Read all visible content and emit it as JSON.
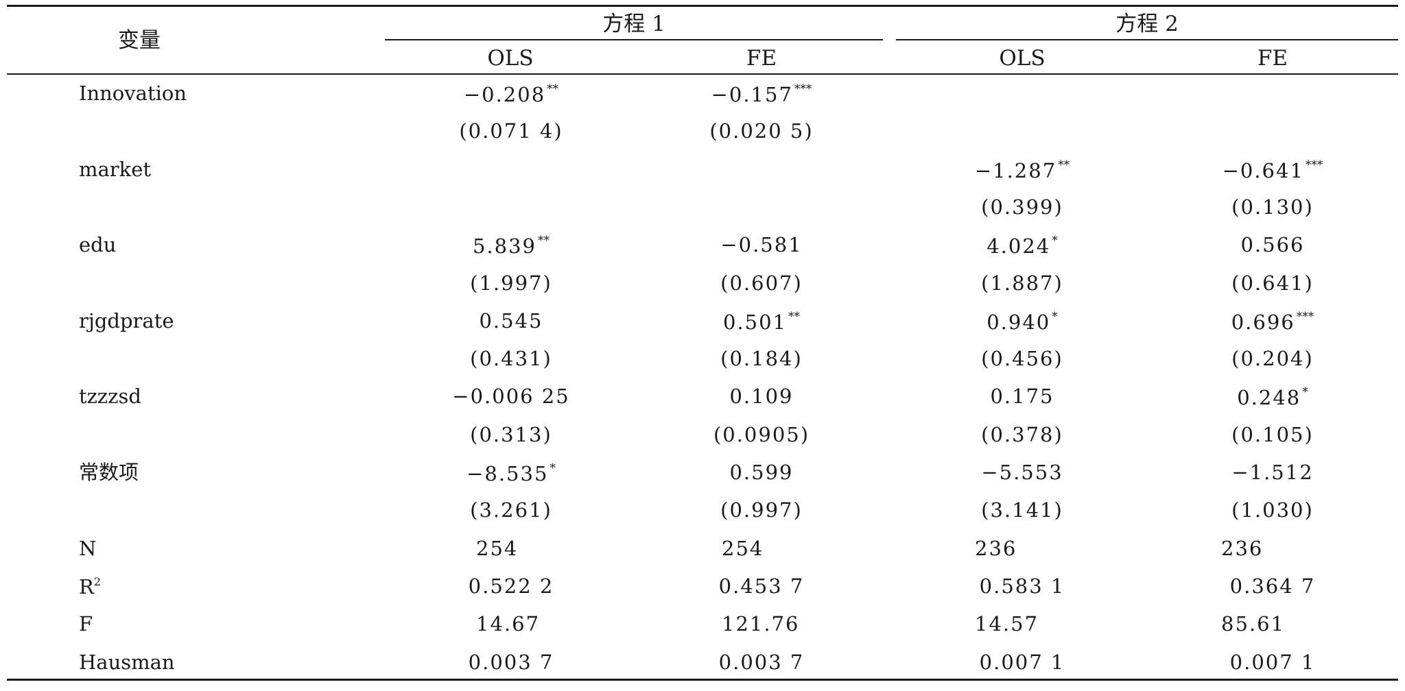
{
  "table": {
    "header": {
      "variable": "变量",
      "groups": [
        "方程 1",
        "方程 2"
      ],
      "columns": [
        "OLS",
        "FE",
        "OLS",
        "FE"
      ]
    },
    "rows": [
      {
        "name": "Innovation",
        "coef": [
          "−0.208",
          "−0.157",
          "",
          ""
        ],
        "stars": [
          "**",
          "***",
          "",
          ""
        ],
        "se": [
          "(0.071 4)",
          "(0.020 5)",
          "",
          ""
        ]
      },
      {
        "name": "market",
        "coef": [
          "",
          "",
          "−1.287",
          "−0.641"
        ],
        "stars": [
          "",
          "",
          "**",
          "***"
        ],
        "se": [
          "",
          "",
          "(0.399)",
          "(0.130)"
        ]
      },
      {
        "name": "edu",
        "coef": [
          "5.839",
          "−0.581",
          "4.024",
          "0.566"
        ],
        "stars": [
          "**",
          "",
          "*",
          ""
        ],
        "se": [
          "(1.997)",
          "(0.607)",
          "(1.887)",
          "(0.641)"
        ]
      },
      {
        "name": "rjgdprate",
        "coef": [
          "0.545",
          "0.501",
          "0.940",
          "0.696"
        ],
        "stars": [
          "",
          "**",
          "*",
          "***"
        ],
        "se": [
          "(0.431)",
          "(0.184)",
          "(0.456)",
          "(0.204)"
        ]
      },
      {
        "name": "tzzzsd",
        "coef": [
          "−0.006 25",
          "0.109",
          "0.175",
          "0.248"
        ],
        "stars": [
          "",
          "",
          "",
          "*"
        ],
        "se": [
          "(0.313)",
          "(0.0905)",
          "(0.378)",
          "(0.105)"
        ]
      },
      {
        "name": "常数项",
        "coef": [
          "−8.535",
          "0.599",
          "−5.553",
          "−1.512"
        ],
        "stars": [
          "*",
          "",
          "",
          ""
        ],
        "se": [
          "(3.261)",
          "(0.997)",
          "(3.141)",
          "(1.030)"
        ]
      }
    ],
    "stats": [
      {
        "name": "N",
        "values": [
          "254",
          "254",
          "236",
          "236"
        ]
      },
      {
        "name": "R",
        "sup": "2",
        "values": [
          "0.522 2",
          "0.453 7",
          "0.583 1",
          "0.364 7"
        ]
      },
      {
        "name": "F",
        "values": [
          "14.67",
          "121.76",
          "14.57",
          "85.61"
        ]
      },
      {
        "name": "Hausman",
        "values": [
          "0.003 7",
          "0.003 7",
          "0.007 1",
          "0.007 1"
        ]
      }
    ]
  }
}
